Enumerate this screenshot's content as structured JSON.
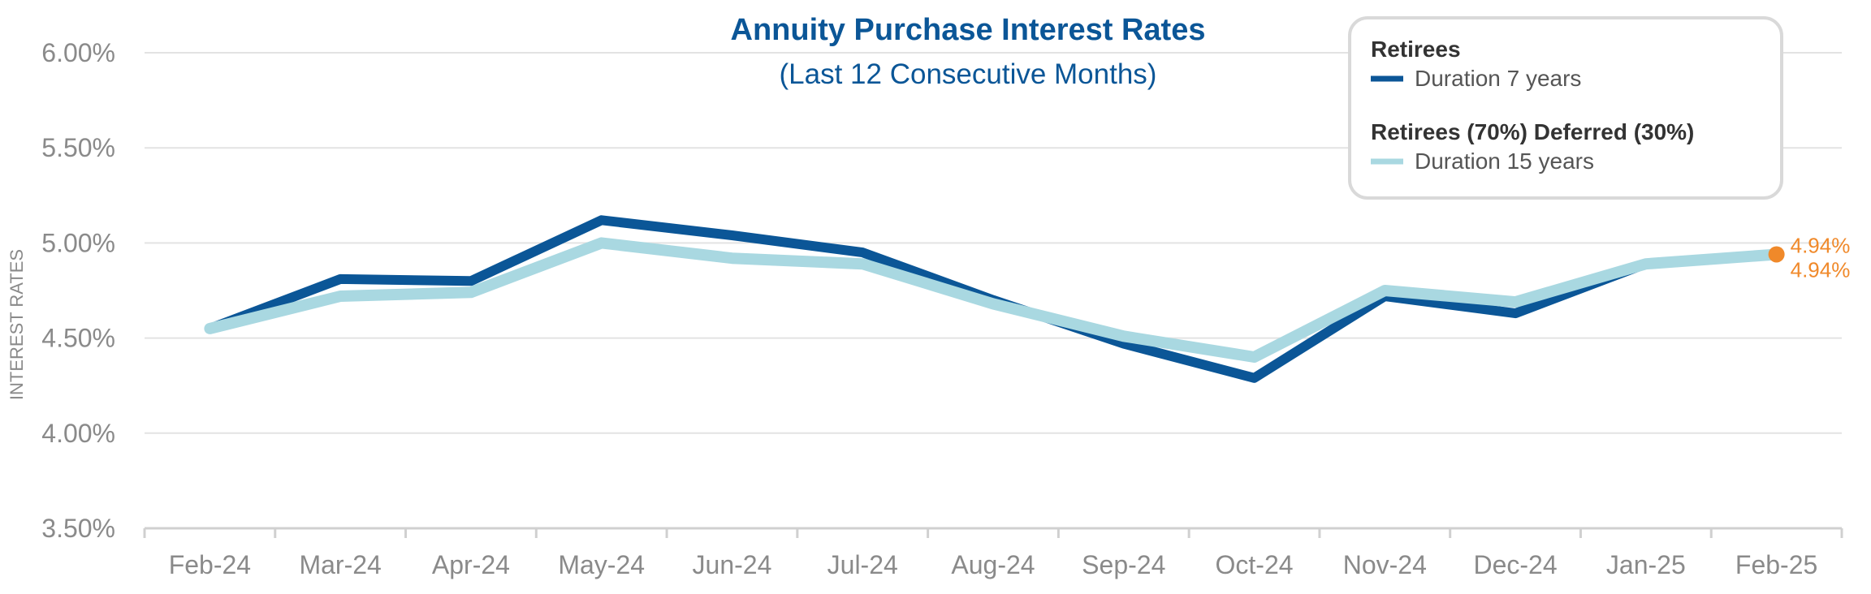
{
  "chart_data": {
    "type": "line",
    "title": "Annuity Purchase Interest Rates",
    "subtitle": "(Last 12 Consecutive Months)",
    "xlabel": "",
    "ylabel": "INTEREST RATES",
    "categories": [
      "Feb-24",
      "Mar-24",
      "Apr-24",
      "May-24",
      "Jun-24",
      "Jul-24",
      "Aug-24",
      "Sep-24",
      "Oct-24",
      "Nov-24",
      "Dec-24",
      "Jan-25",
      "Feb-25"
    ],
    "y_ticks": [
      "6.00%",
      "5.50%",
      "5.00%",
      "4.50%",
      "4.00%",
      "3.50%"
    ],
    "ylim": [
      3.5,
      6.0
    ],
    "grid": true,
    "legend_position": "top-right",
    "series": [
      {
        "name": "Retirees",
        "label": "Duration 7 years",
        "color": "#0b5697",
        "values": [
          4.55,
          4.81,
          4.8,
          5.12,
          5.04,
          4.95,
          4.7,
          4.47,
          4.29,
          4.72,
          4.63,
          4.89,
          4.94
        ]
      },
      {
        "name": "Retirees (70%) Deferred (30%)",
        "label": "Duration 15 years",
        "color": "#a9d8e1",
        "values": [
          4.55,
          4.72,
          4.74,
          5.0,
          4.92,
          4.89,
          4.68,
          4.51,
          4.4,
          4.75,
          4.69,
          4.89,
          4.94
        ]
      }
    ],
    "annotations": {
      "marker_color": "#f0892a",
      "labels": [
        "4.94%",
        "4.94%"
      ]
    }
  }
}
